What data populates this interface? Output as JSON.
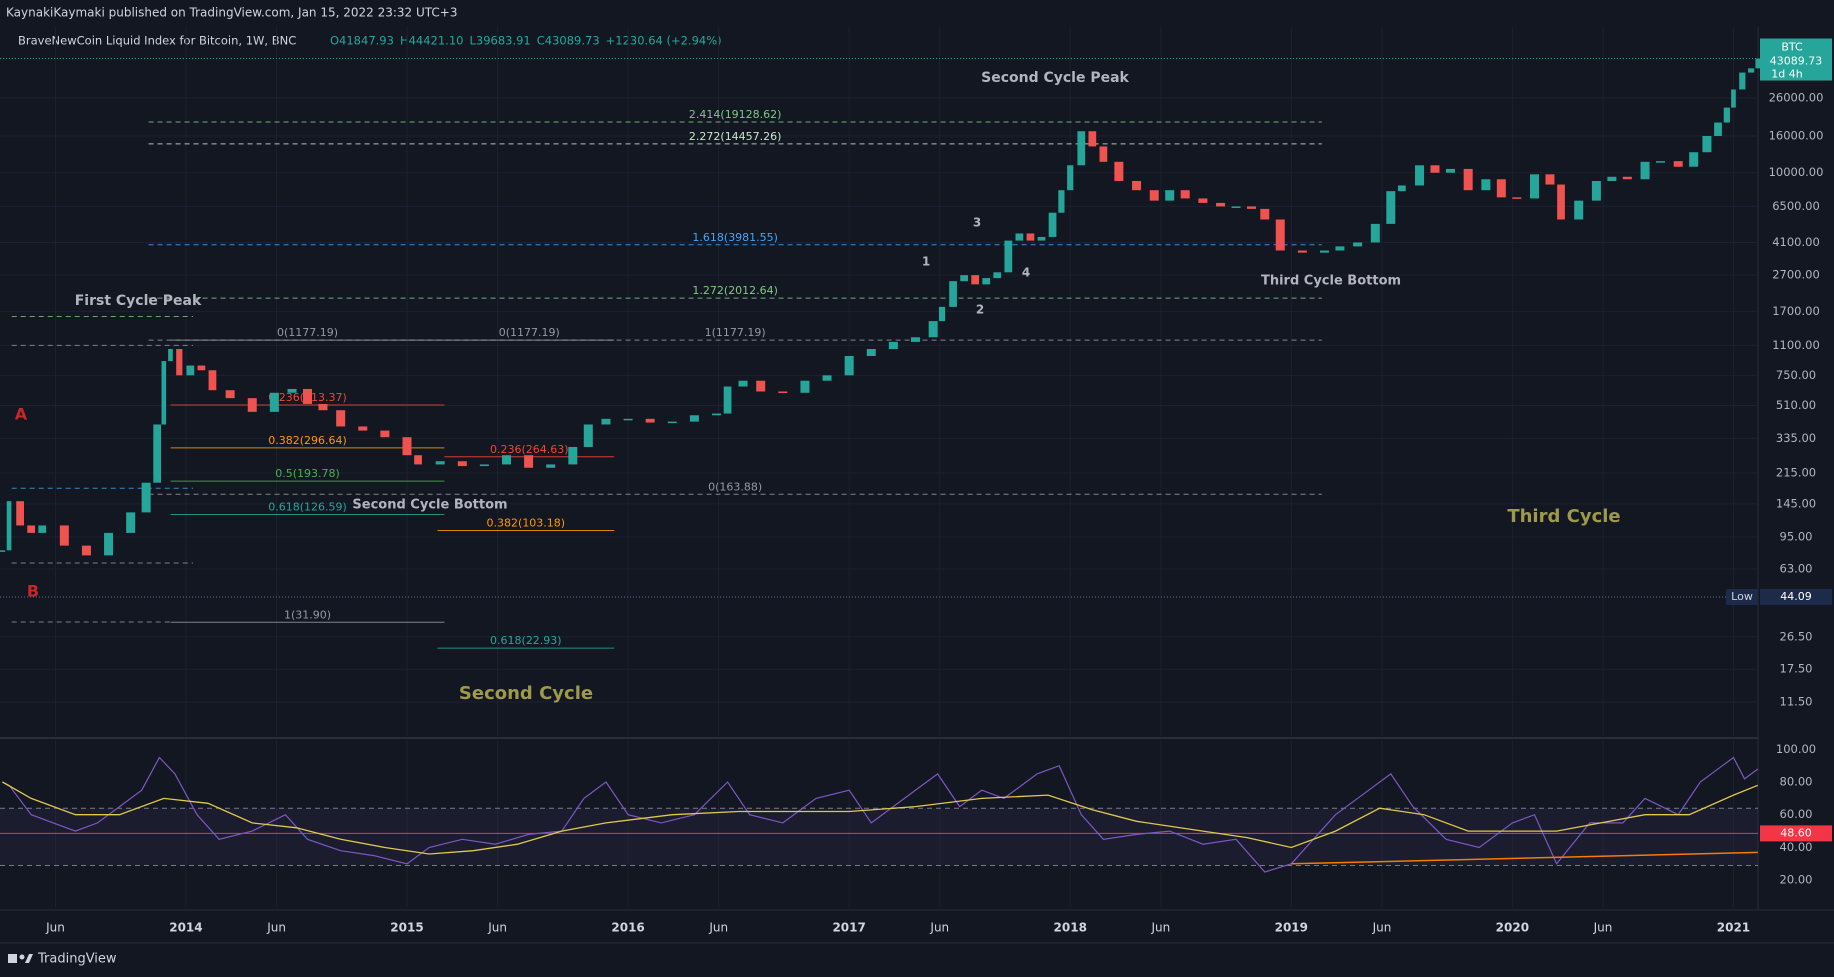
{
  "header": {
    "publisher": "KaynakiKaymaki published on TradingView.com, Jan 15, 2022 23:32 UTC+3"
  },
  "chart_data": {
    "type": "candlestick",
    "title": "BraveNewCoin Liquid Index for Bitcoin, 1W, BNC",
    "ohlc_legend": [
      "O41847.93",
      "H44421.10",
      "L39683.91",
      "C43089.73",
      "+1230.64 (+2.94%)"
    ],
    "log_scale": true,
    "grid": true,
    "colors": {
      "up": "#26a69a",
      "down": "#ef5350"
    },
    "xlim": [
      2013.159,
      2021.111
    ],
    "xticks": [
      {
        "value": 2013.41,
        "label": "Jun"
      },
      {
        "value": 2014,
        "label": "2014"
      },
      {
        "value": 2014.41,
        "label": "Jun"
      },
      {
        "value": 2015,
        "label": "2015"
      },
      {
        "value": 2015.41,
        "label": "Jun"
      },
      {
        "value": 2016,
        "label": "2016"
      },
      {
        "value": 2016.41,
        "label": "Jun"
      },
      {
        "value": 2017,
        "label": "2017"
      },
      {
        "value": 2017.41,
        "label": "Jun"
      },
      {
        "value": 2018,
        "label": "2018"
      },
      {
        "value": 2018.41,
        "label": "Jun"
      },
      {
        "value": 2019,
        "label": "2019"
      },
      {
        "value": 2019.41,
        "label": "Jun"
      },
      {
        "value": 2020,
        "label": "2020"
      },
      {
        "value": 2020.41,
        "label": "Jun"
      },
      {
        "value": 2021,
        "label": "2021"
      }
    ],
    "ylim": [
      7.45,
      58200
    ],
    "yticks": [
      {
        "value": 26000,
        "label": "26000.00"
      },
      {
        "value": 16000,
        "label": "16000.00"
      },
      {
        "value": 10000,
        "label": "10000.00"
      },
      {
        "value": 6500,
        "label": "6500.00"
      },
      {
        "value": 4100,
        "label": "4100.00"
      },
      {
        "value": 2700,
        "label": "2700.00"
      },
      {
        "value": 1700,
        "label": "1700.00"
      },
      {
        "value": 1100,
        "label": "1100.00"
      },
      {
        "value": 750,
        "label": "750.00"
      },
      {
        "value": 510,
        "label": "510.00"
      },
      {
        "value": 335,
        "label": "335.00"
      },
      {
        "value": 215,
        "label": "215.00"
      },
      {
        "value": 145,
        "label": "145.00"
      },
      {
        "value": 95,
        "label": "95.00"
      },
      {
        "value": 63,
        "label": "63.00"
      },
      {
        "value": 26.5,
        "label": "26.50"
      },
      {
        "value": 17.5,
        "label": "17.50"
      },
      {
        "value": 11.5,
        "label": "11.50"
      }
    ],
    "x": [
      2013.17,
      2013.2,
      2013.25,
      2013.3,
      2013.35,
      2013.45,
      2013.55,
      2013.65,
      2013.75,
      2013.82,
      2013.87,
      2013.9,
      2013.93,
      2013.97,
      2014.02,
      2014.07,
      2014.12,
      2014.2,
      2014.3,
      2014.4,
      2014.48,
      2014.55,
      2014.62,
      2014.7,
      2014.8,
      2014.9,
      2015.0,
      2015.05,
      2015.15,
      2015.25,
      2015.35,
      2015.45,
      2015.55,
      2015.65,
      2015.75,
      2015.82,
      2015.9,
      2016.0,
      2016.1,
      2016.2,
      2016.3,
      2016.4,
      2016.45,
      2016.52,
      2016.6,
      2016.7,
      2016.8,
      2016.9,
      2017.0,
      2017.1,
      2017.2,
      2017.3,
      2017.38,
      2017.42,
      2017.47,
      2017.52,
      2017.57,
      2017.62,
      2017.67,
      2017.72,
      2017.77,
      2017.82,
      2017.87,
      2017.92,
      2017.96,
      2018.0,
      2018.05,
      2018.1,
      2018.15,
      2018.22,
      2018.3,
      2018.38,
      2018.45,
      2018.52,
      2018.6,
      2018.68,
      2018.75,
      2018.82,
      2018.88,
      2018.95,
      2019.05,
      2019.15,
      2019.22,
      2019.3,
      2019.38,
      2019.45,
      2019.5,
      2019.58,
      2019.65,
      2019.72,
      2019.8,
      2019.88,
      2019.95,
      2020.02,
      2020.1,
      2020.17,
      2020.22,
      2020.3,
      2020.38,
      2020.45,
      2020.52,
      2020.6,
      2020.67,
      2020.75,
      2020.82,
      2020.88,
      2020.93,
      2020.97,
      2021.0,
      2021.04,
      2021.08,
      2021.11
    ],
    "values": [
      80,
      150,
      110,
      100,
      110,
      85,
      75,
      100,
      130,
      190,
      400,
      900,
      1050,
      750,
      850,
      800,
      620,
      560,
      470,
      600,
      630,
      520,
      480,
      390,
      370,
      340,
      270,
      240,
      250,
      235,
      240,
      270,
      230,
      240,
      300,
      400,
      430,
      430,
      410,
      415,
      450,
      460,
      650,
      700,
      610,
      600,
      700,
      750,
      960,
      1050,
      1150,
      1220,
      1500,
      1800,
      2500,
      2700,
      2400,
      2600,
      2800,
      4200,
      4600,
      4200,
      4400,
      6000,
      8000,
      11000,
      17000,
      14000,
      11500,
      9000,
      8000,
      7000,
      8000,
      7200,
      6800,
      6500,
      6500,
      6300,
      5500,
      3700,
      3600,
      3700,
      3900,
      4100,
      5200,
      7900,
      8500,
      11000,
      10000,
      10500,
      8000,
      9200,
      7300,
      7200,
      9800,
      8600,
      5500,
      7000,
      9000,
      9500,
      9200,
      11500,
      11600,
      10800,
      13000,
      16000,
      19000,
      23000,
      29000,
      36000,
      38000,
      43089.73
    ],
    "last_price": 43089.73,
    "symbol": "BTC",
    "countdown": "1d 4h",
    "low_label": "Low",
    "low": 44.09,
    "fib_levels": [
      {
        "label": "2.414(19128.62)",
        "value": 19128.62,
        "x": [
          2013.831,
          2019.138
        ],
        "color": "#81c784",
        "dashed": true
      },
      {
        "label": "2.272(14457.26)",
        "value": 14457.26,
        "x": [
          2013.831,
          2019.138
        ],
        "color": "#c8e6c9",
        "dashed": true
      },
      {
        "label": "1.618(3981.55)",
        "value": 3981.55,
        "x": [
          2013.831,
          2019.138
        ],
        "color": "#42a5f5",
        "dashed": true
      },
      {
        "label": "1.272(2012.64)",
        "value": 2012.64,
        "x": [
          2013.831,
          2019.138
        ],
        "color": "#81c784",
        "dashed": true
      },
      {
        "label": "0(1177.19)",
        "value": 1177.19,
        "x": [
          2013.931,
          2015.169
        ],
        "color": "#9598a1",
        "dashed": false
      },
      {
        "label": "0(1177.19)",
        "value": 1177.19,
        "x": [
          2015.169,
          2015.937
        ],
        "color": "#9598a1",
        "dashed": false
      },
      {
        "label": "1(1177.19)",
        "value": 1177.19,
        "x": [
          2013.831,
          2019.138
        ],
        "color": "#9598a1",
        "dashed": true
      },
      {
        "label": "0.236(513.37)",
        "value": 513.37,
        "x": [
          2013.931,
          2015.169
        ],
        "color": "#f44336",
        "dashed": false
      },
      {
        "label": "0.382(296.64)",
        "value": 296.64,
        "x": [
          2013.931,
          2015.169
        ],
        "color": "#ff9800",
        "dashed": false
      },
      {
        "label": "0.236(264.63)",
        "value": 264.63,
        "x": [
          2015.169,
          2015.937
        ],
        "color": "#f44336",
        "dashed": false
      },
      {
        "label": "0.5(193.78)",
        "value": 193.78,
        "x": [
          2013.931,
          2015.169
        ],
        "color": "#4caf50",
        "dashed": false
      },
      {
        "label": "0(163.88)",
        "value": 163.88,
        "x": [
          2013.831,
          2019.138
        ],
        "color": "#9598a1",
        "dashed": true
      },
      {
        "label": "0.618(126.59)",
        "value": 126.59,
        "x": [
          2013.931,
          2015.169
        ],
        "color": "#26a69a",
        "dashed": false
      },
      {
        "label": "0.382(103.18)",
        "value": 103.18,
        "x": [
          2015.138,
          2015.937
        ],
        "color": "#ff9800",
        "dashed": false
      },
      {
        "label": "1(31.90)",
        "value": 31.9,
        "x": [
          2013.931,
          2015.169
        ],
        "color": "#9598a1",
        "dashed": false
      },
      {
        "label": "0.618(22.93)",
        "value": 22.93,
        "x": [
          2015.138,
          2015.937
        ],
        "color": "#26a69a",
        "dashed": false
      }
    ],
    "levels": [
      {
        "value": 1590,
        "x": [
          2013.212,
          2014.032
        ],
        "color": "#81c784"
      },
      {
        "value": 1100,
        "x": [
          2013.212,
          2014.032
        ],
        "color": "#9598a1"
      },
      {
        "value": 177,
        "x": [
          2013.212,
          2014.032
        ],
        "color": "#42a5f5"
      },
      {
        "value": 68,
        "x": [
          2013.212,
          2014.032
        ],
        "color": "#9598a1"
      },
      {
        "value": 32,
        "x": [
          2013.212,
          2013.931
        ],
        "color": "#9598a1"
      }
    ],
    "annotations": [
      {
        "text": "First Cycle Peak",
        "color": "#b2b5be"
      },
      {
        "text": "Second Cycle Peak",
        "color": "#b2b5be"
      },
      {
        "text": "Second Cycle Bottom",
        "color": "#b2b5be"
      },
      {
        "text": "Third Cycle Bottom",
        "color": "#b2b5be"
      },
      {
        "text": "Second Cycle",
        "color": "#9e9a4a"
      },
      {
        "text": "Third Cycle",
        "color": "#9e9a4a"
      },
      {
        "text": "A",
        "color": "#c62828"
      },
      {
        "text": "B",
        "color": "#c62828"
      },
      {
        "text": "1",
        "color": "#b2b5be"
      },
      {
        "text": "2",
        "color": "#b2b5be"
      },
      {
        "text": "3",
        "color": "#b2b5be"
      },
      {
        "text": "4",
        "color": "#b2b5be"
      }
    ],
    "rsi": {
      "ylim": [
        3.6,
        105.7
      ],
      "yticks": [
        {
          "value": 100,
          "label": "100.00"
        },
        {
          "value": 80,
          "label": "80.00"
        },
        {
          "value": 60,
          "label": "60.00"
        },
        {
          "value": 40,
          "label": "40.00"
        },
        {
          "value": 20,
          "label": "20.00"
        }
      ],
      "bands": [
        64,
        29
      ],
      "level": {
        "value": 48.6,
        "label": "48.60"
      },
      "color": "#7e57c2",
      "ma_color": "#e0c84a",
      "x": [
        2013.17,
        2013.2,
        2013.3,
        2013.4,
        2013.5,
        2013.6,
        2013.7,
        2013.8,
        2013.88,
        2013.95,
        2014.05,
        2014.15,
        2014.3,
        2014.45,
        2014.55,
        2014.7,
        2014.85,
        2015.0,
        2015.1,
        2015.25,
        2015.4,
        2015.55,
        2015.7,
        2015.8,
        2015.9,
        2016.0,
        2016.15,
        2016.3,
        2016.45,
        2016.55,
        2016.7,
        2016.85,
        2017.0,
        2017.1,
        2017.25,
        2017.4,
        2017.5,
        2017.6,
        2017.7,
        2017.85,
        2017.95,
        2018.05,
        2018.15,
        2018.3,
        2018.45,
        2018.6,
        2018.75,
        2018.88,
        2019.0,
        2019.2,
        2019.35,
        2019.45,
        2019.55,
        2019.7,
        2019.85,
        2020.0,
        2020.1,
        2020.2,
        2020.35,
        2020.5,
        2020.6,
        2020.75,
        2020.85,
        2020.95,
        2021.0,
        2021.05,
        2021.11
      ],
      "values": [
        80,
        78,
        60,
        55,
        50,
        55,
        65,
        75,
        95,
        85,
        60,
        45,
        50,
        60,
        45,
        38,
        35,
        30,
        40,
        45,
        42,
        48,
        50,
        70,
        80,
        60,
        55,
        60,
        80,
        60,
        55,
        70,
        75,
        55,
        70,
        85,
        65,
        75,
        70,
        85,
        90,
        60,
        45,
        48,
        50,
        42,
        45,
        25,
        30,
        60,
        75,
        85,
        65,
        45,
        40,
        55,
        60,
        30,
        55,
        55,
        70,
        60,
        80,
        90,
        95,
        82,
        88
      ],
      "ma_x": [
        2013.17,
        2013.3,
        2013.5,
        2013.7,
        2013.9,
        2014.1,
        2014.3,
        2014.5,
        2014.7,
        2014.9,
        2015.1,
        2015.3,
        2015.5,
        2015.7,
        2015.9,
        2016.2,
        2016.5,
        2016.8,
        2017.0,
        2017.3,
        2017.6,
        2017.9,
        2018.1,
        2018.3,
        2018.6,
        2018.8,
        2019.0,
        2019.2,
        2019.4,
        2019.6,
        2019.8,
        2020.0,
        2020.2,
        2020.4,
        2020.6,
        2020.8,
        2021.0,
        2021.11
      ],
      "ma_values": [
        80,
        70,
        60,
        60,
        70,
        67,
        55,
        52,
        45,
        40,
        36,
        38,
        42,
        50,
        55,
        60,
        62,
        62,
        62,
        65,
        70,
        72,
        63,
        56,
        50,
        46,
        40,
        50,
        64,
        60,
        50,
        50,
        50,
        55,
        60,
        60,
        72,
        78
      ],
      "trendline": {
        "x": [
          2019.0,
          2021.11
        ],
        "values": [
          30,
          37
        ],
        "color": "#f57c00"
      }
    }
  },
  "footer": {
    "brand": "TradingView"
  }
}
